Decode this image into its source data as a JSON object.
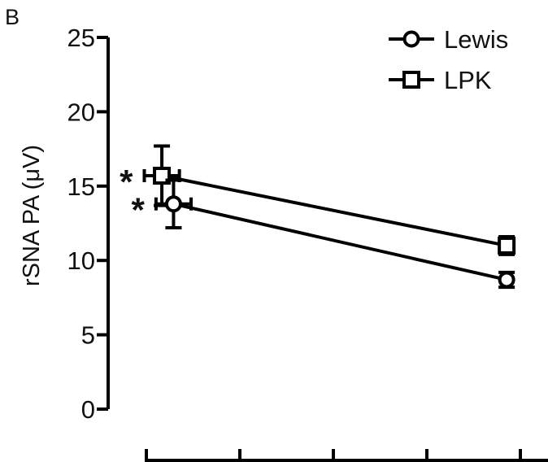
{
  "panel_label": "B",
  "chart_data": {
    "type": "line",
    "title": "",
    "xlabel": "",
    "ylabel": "rSNA PA (μV)",
    "ylim": [
      0,
      25
    ],
    "yticks": [
      "0",
      "5",
      "10",
      "15",
      "20",
      "25"
    ],
    "x_categories": 4,
    "legend_position": "top-right",
    "grid": false,
    "series": [
      {
        "name": "Lewis",
        "marker": "circle",
        "color": "#000000",
        "points": [
          {
            "x": 1.15,
            "y": 13.8,
            "yerr": 1.6,
            "xerr": 0.15
          },
          {
            "x": 4.0,
            "y": 8.7,
            "yerr": 0.5,
            "xerr": 0.0
          }
        ]
      },
      {
        "name": "LPK",
        "marker": "square",
        "color": "#000000",
        "points": [
          {
            "x": 1.05,
            "y": 15.7,
            "yerr": 2.0,
            "xerr": 0.15
          },
          {
            "x": 4.0,
            "y": 11.0,
            "yerr": 0.6,
            "xerr": 0.0
          }
        ]
      }
    ],
    "annotations": [
      {
        "text": "*",
        "near_series": "LPK",
        "point_index": 0
      },
      {
        "text": "*",
        "near_series": "Lewis",
        "point_index": 0
      }
    ]
  }
}
